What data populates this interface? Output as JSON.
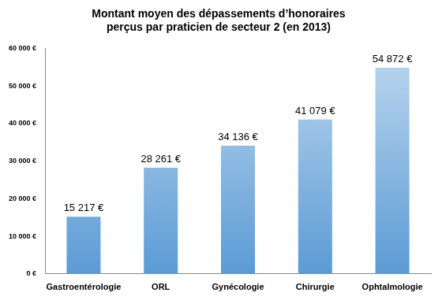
{
  "chart_data": {
    "type": "bar",
    "title": [
      "Montant moyen des dépassements d’honoraires",
      "perçus par praticien de secteur 2 (en 2013)"
    ],
    "categories": [
      "Gastroentérologie",
      "ORL",
      "Gynécologie",
      "Chirurgie",
      "Ophtalmologie"
    ],
    "values": [
      15217,
      28261,
      34136,
      41079,
      54872
    ],
    "value_labels": [
      "15 217 €",
      "28 261 €",
      "34 136 €",
      "41 079 €",
      "54 872 €"
    ],
    "data_labels": true,
    "color": "#5b9bd5",
    "ylim": [
      0,
      60000
    ],
    "yticks": [
      {
        "value": 0,
        "label": "0 €"
      },
      {
        "value": 10000,
        "label": "10 000 €"
      },
      {
        "value": 20000,
        "label": "20 000 €"
      },
      {
        "value": 30000,
        "label": "30 000 €"
      },
      {
        "value": 40000,
        "label": "40 000 €"
      },
      {
        "value": 50000,
        "label": "50 000 €"
      },
      {
        "value": 60000,
        "label": "60 000 €"
      }
    ],
    "grid": false
  }
}
